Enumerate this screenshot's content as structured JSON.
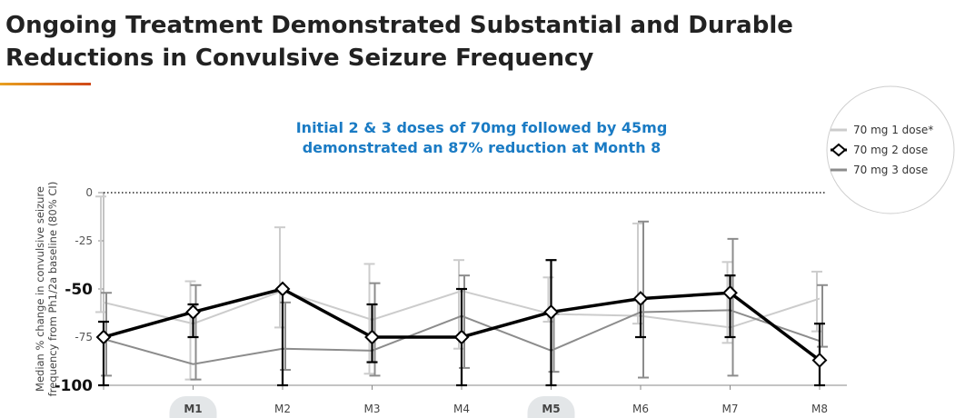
{
  "header": {
    "title_line1": "Ongoing Treatment Demonstrated Substantial and Durable",
    "title_line2": "Reductions in Convulsive Seizure Frequency",
    "accent_colors": [
      "#e8a020",
      "#d04818"
    ]
  },
  "chart_data": {
    "type": "line",
    "title_line1": "Initial 2 & 3 doses of 70mg followed by 45mg",
    "title_line2": "demonstrated an 87% reduction at Month 8",
    "title_color": "#1a7bc4",
    "ylabel_line1": "Median % change in convulsive seizure",
    "ylabel_line2": "frequency from Ph1/2a baseline (80% CI)",
    "ylim": [
      -100,
      0
    ],
    "yticks": [
      "0",
      "-25",
      "-50",
      "-75",
      "-100"
    ],
    "categories": [
      "",
      "M1",
      "M2",
      "M3",
      "M4",
      "M5",
      "M6",
      "M7",
      "M8"
    ],
    "highlighted_categories": [
      "M1",
      "M5"
    ],
    "reference_line": 0,
    "legend_position": "top-right",
    "series": [
      {
        "name": "70 mg 1 dose*",
        "color": "#cccccc",
        "values": [
          -57,
          -68,
          -51,
          -66,
          -51,
          -63,
          -64,
          -70,
          -55
        ],
        "ci_low": [
          -62,
          -97,
          -70,
          -94,
          -81,
          -67,
          -68,
          -78,
          -72
        ],
        "ci_high": [
          -2,
          -46,
          -18,
          -37,
          -35,
          -44,
          -16,
          -36,
          -41
        ]
      },
      {
        "name": "70 mg 2 dose",
        "color": "#000000",
        "values": [
          -75,
          -62,
          -50,
          -75,
          -75,
          -62,
          -55,
          -52,
          -87
        ],
        "ci_low": [
          -100,
          -75,
          -100,
          -88,
          -100,
          -100,
          -75,
          -75,
          -100
        ],
        "ci_high": [
          -67,
          -58,
          -50,
          -58,
          -50,
          -35,
          -55,
          -43,
          -68
        ]
      },
      {
        "name": "70 mg 3 dose",
        "color": "#8c8c8c",
        "values": [
          -76,
          -89,
          -81,
          -82,
          -64,
          -82,
          -62,
          -61,
          -77
        ],
        "ci_low": [
          -95,
          -97,
          -92,
          -95,
          -91,
          -93,
          -96,
          -95,
          -80
        ],
        "ci_high": [
          -52,
          -48,
          -57,
          -47,
          -43,
          -63,
          -15,
          -24,
          -48
        ]
      }
    ]
  }
}
